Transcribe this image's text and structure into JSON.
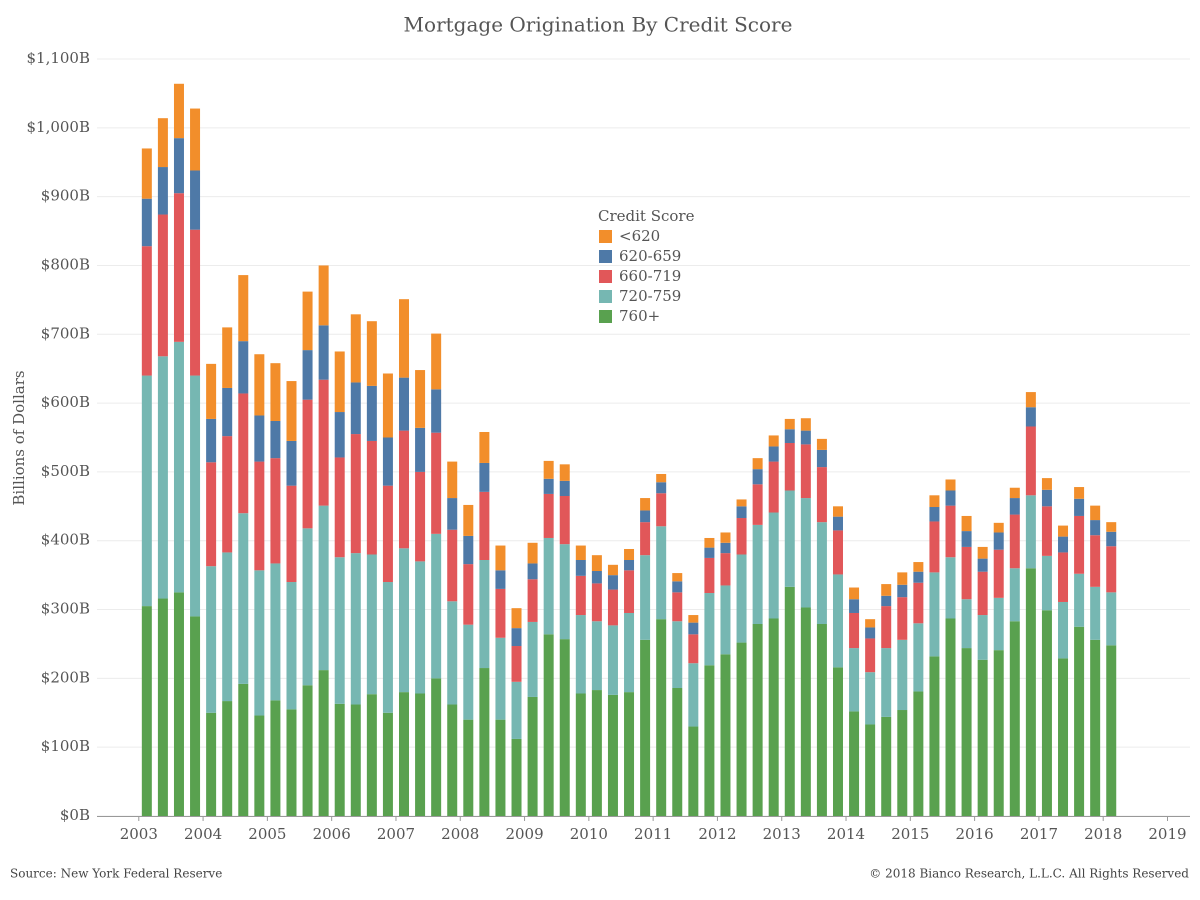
{
  "chart_data": {
    "type": "stacked_bar",
    "title": "Mortgage Origination By Credit Score",
    "y_label": "Billions of Dollars",
    "legend_title": "Credit Score",
    "source": "Source: New York Federal Reserve",
    "copyright": "© 2018 Bianco Research, L.L.C. All Rights Reserved",
    "grid": true,
    "x": [
      2003.125,
      2003.375,
      2003.625,
      2003.875,
      2004.125,
      2004.375,
      2004.625,
      2004.875,
      2005.125,
      2005.375,
      2005.625,
      2005.875,
      2006.125,
      2006.375,
      2006.625,
      2006.875,
      2007.125,
      2007.375,
      2007.625,
      2007.875,
      2008.125,
      2008.375,
      2008.625,
      2008.875,
      2009.125,
      2009.375,
      2009.625,
      2009.875,
      2010.125,
      2010.375,
      2010.625,
      2010.875,
      2011.125,
      2011.375,
      2011.625,
      2011.875,
      2012.125,
      2012.375,
      2012.625,
      2012.875,
      2013.125,
      2013.375,
      2013.625,
      2013.875,
      2014.125,
      2014.375,
      2014.625,
      2014.875,
      2015.125,
      2015.375,
      2015.625,
      2015.875,
      2016.125,
      2016.375,
      2016.625,
      2016.875,
      2017.125,
      2017.375,
      2017.625,
      2017.875,
      2018.125
    ],
    "xlim": [
      2002.35,
      2019.35
    ],
    "xticks": [
      2003,
      2004,
      2005,
      2006,
      2007,
      2008,
      2009,
      2010,
      2011,
      2012,
      2013,
      2014,
      2015,
      2016,
      2017,
      2018,
      2019
    ],
    "ylim": [
      0,
      1100
    ],
    "yticks": [
      {
        "value": 0,
        "label": "$0B"
      },
      {
        "value": 100,
        "label": "$100B"
      },
      {
        "value": 200,
        "label": "$200B"
      },
      {
        "value": 300,
        "label": "$300B"
      },
      {
        "value": 400,
        "label": "$400B"
      },
      {
        "value": 500,
        "label": "$500B"
      },
      {
        "value": 600,
        "label": "$600B"
      },
      {
        "value": 700,
        "label": "$700B"
      },
      {
        "value": 800,
        "label": "$800B"
      },
      {
        "value": 900,
        "label": "$900B"
      },
      {
        "value": 1000,
        "label": "$1,000B"
      },
      {
        "value": 1100,
        "label": "$1,100B"
      }
    ],
    "series": [
      {
        "name": "<620",
        "color": "#f28e2b",
        "values": [
          73,
          71,
          79,
          90,
          80,
          88,
          96,
          89,
          84,
          87,
          85,
          87,
          88,
          99,
          94,
          93,
          114,
          84,
          81,
          53,
          45,
          45,
          36,
          29,
          30,
          26,
          24,
          21,
          23,
          15,
          16,
          18,
          12,
          12,
          11,
          14,
          15,
          10,
          16,
          16,
          15,
          18,
          16,
          15,
          17,
          12,
          17,
          18,
          14,
          17,
          16,
          22,
          17,
          14,
          15,
          22,
          17,
          16,
          17,
          21,
          14
        ]
      },
      {
        "name": "620-659",
        "color": "#4e79a7",
        "values": [
          69,
          69,
          80,
          86,
          63,
          70,
          76,
          67,
          54,
          65,
          72,
          79,
          66,
          75,
          80,
          70,
          77,
          64,
          63,
          46,
          41,
          42,
          27,
          26,
          23,
          22,
          22,
          23,
          18,
          21,
          15,
          17,
          16,
          16,
          17,
          15,
          15,
          17,
          22,
          22,
          20,
          20,
          25,
          20,
          20,
          16,
          15,
          18,
          16,
          21,
          22,
          23,
          19,
          25,
          24,
          28,
          24,
          23,
          25,
          22,
          21
        ]
      },
      {
        "name": "660-719",
        "color": "#e15759",
        "values": [
          188,
          206,
          216,
          212,
          151,
          169,
          174,
          158,
          153,
          140,
          187,
          183,
          145,
          173,
          165,
          140,
          171,
          130,
          147,
          104,
          88,
          99,
          71,
          52,
          62,
          64,
          70,
          57,
          55,
          52,
          62,
          48,
          48,
          42,
          42,
          51,
          47,
          53,
          59,
          74,
          69,
          78,
          80,
          64,
          51,
          49,
          61,
          62,
          59,
          74,
          75,
          76,
          63,
          70,
          78,
          100,
          72,
          72,
          84,
          75,
          67
        ]
      },
      {
        "name": "720-759",
        "color": "#76b7b2",
        "values": [
          335,
          352,
          364,
          350,
          213,
          216,
          248,
          211,
          199,
          185,
          228,
          239,
          213,
          220,
          203,
          190,
          209,
          192,
          210,
          150,
          138,
          157,
          119,
          83,
          109,
          140,
          138,
          114,
          100,
          101,
          115,
          123,
          135,
          97,
          92,
          105,
          100,
          128,
          144,
          154,
          140,
          159,
          148,
          135,
          92,
          76,
          100,
          102,
          99,
          122,
          89,
          71,
          65,
          76,
          77,
          106,
          79,
          82,
          77,
          77,
          77
        ]
      },
      {
        "name": "760+",
        "color": "#59a14f",
        "values": [
          305,
          316,
          325,
          290,
          150,
          167,
          192,
          146,
          168,
          155,
          190,
          212,
          163,
          162,
          177,
          150,
          180,
          178,
          200,
          162,
          140,
          215,
          140,
          112,
          173,
          264,
          257,
          178,
          183,
          176,
          180,
          256,
          286,
          186,
          130,
          219,
          235,
          252,
          279,
          287,
          333,
          303,
          279,
          216,
          152,
          133,
          144,
          154,
          181,
          232,
          287,
          244,
          227,
          241,
          283,
          360,
          299,
          229,
          275,
          256,
          248
        ]
      }
    ]
  }
}
